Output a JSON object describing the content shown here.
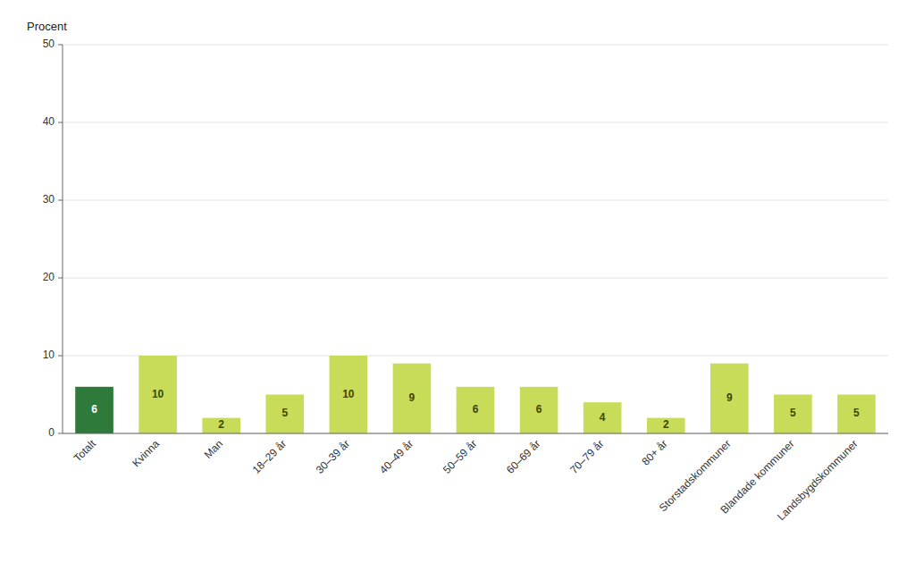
{
  "chart_data": {
    "type": "bar",
    "categories": [
      "Totalt",
      "Kvinna",
      "Man",
      "18–29 år",
      "30–39 år",
      "40–49 år",
      "50–59 år",
      "60–69 år",
      "70–79 år",
      "80+ år",
      "Storstadskommuner",
      "Blandade kommuner",
      "Landsbygdskommuner"
    ],
    "values": [
      6,
      10,
      2,
      5,
      10,
      9,
      6,
      6,
      4,
      2,
      9,
      5,
      5
    ],
    "colors": [
      "#2d7a3a",
      "#c8dc5a",
      "#c8dc5a",
      "#c8dc5a",
      "#c8dc5a",
      "#c8dc5a",
      "#c8dc5a",
      "#c8dc5a",
      "#c8dc5a",
      "#c8dc5a",
      "#c8dc5a",
      "#c8dc5a",
      "#c8dc5a"
    ],
    "y_label": "Procent",
    "ylim": [
      0,
      50
    ],
    "yticks": [
      0,
      10,
      20,
      30,
      40,
      50
    ],
    "grid": true,
    "data_labels": true
  }
}
